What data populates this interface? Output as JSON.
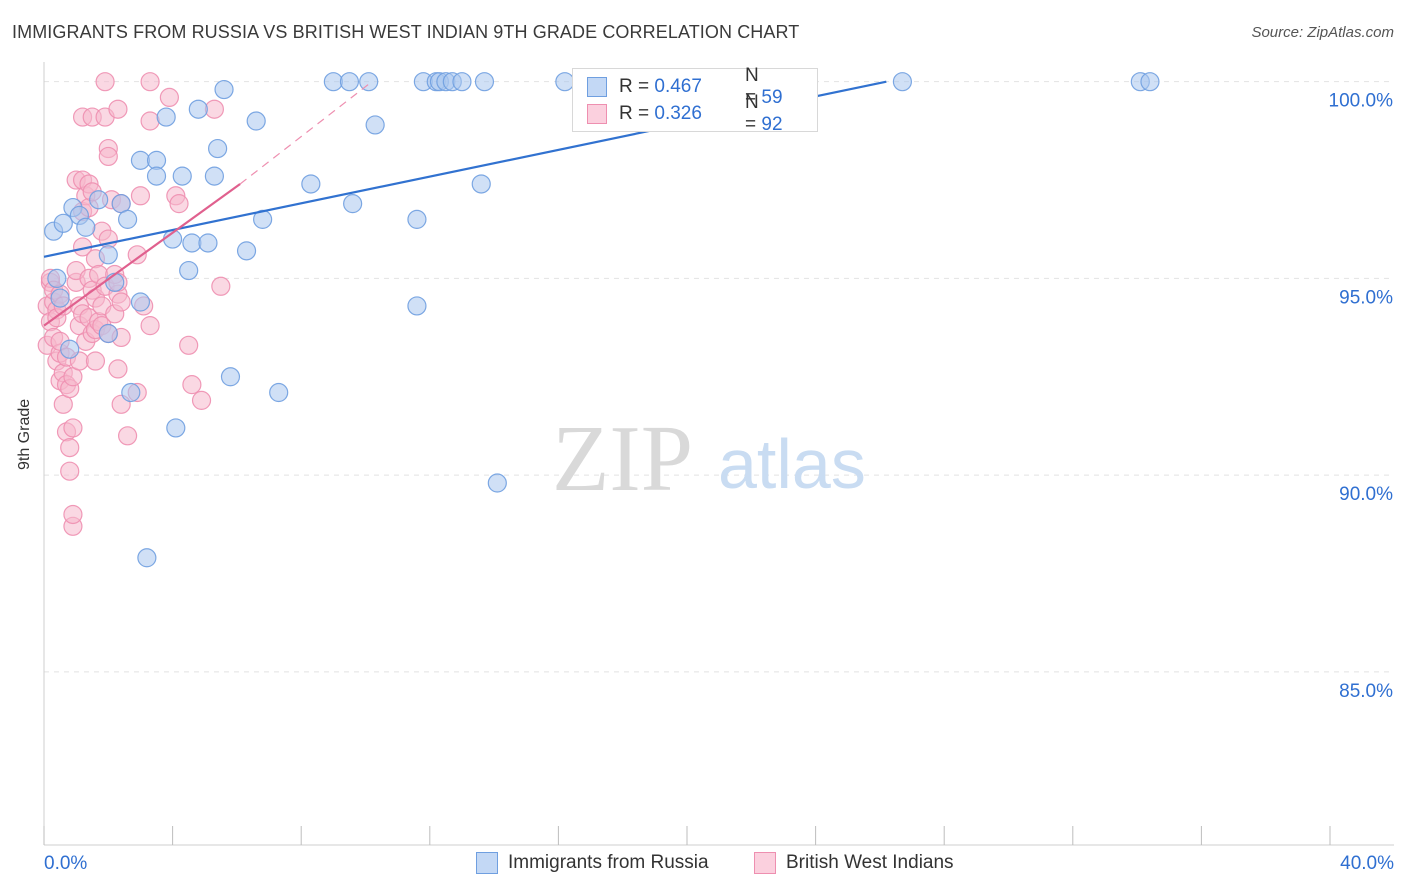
{
  "header": {
    "title": "IMMIGRANTS FROM RUSSIA VS BRITISH WEST INDIAN 9TH GRADE CORRELATION CHART",
    "source": "Source: ZipAtlas.com"
  },
  "watermark": {
    "zip": "ZIP",
    "atlas": "atlas"
  },
  "legend_top": {
    "rows": [
      {
        "r_label": "R =",
        "r_value": "0.467",
        "n_label": "N =",
        "n_value": "59"
      },
      {
        "r_label": "R =",
        "r_value": "0.326",
        "n_label": "N =",
        "n_value": "92"
      }
    ]
  },
  "colors": {
    "blue_fill": "#a9c6ee",
    "blue_stroke": "#6f9fe0",
    "blue_line": "#3172d0",
    "pink_fill": "#f6b8cc",
    "pink_stroke": "#ee8fb0",
    "pink_line": "#e0608e",
    "grid": "#e2e2e2",
    "tick_label": "#2f6fd1"
  },
  "chart_data": {
    "type": "scatter",
    "title": "IMMIGRANTS FROM RUSSIA VS BRITISH WEST INDIAN 9TH GRADE CORRELATION CHART",
    "xlabel": "",
    "ylabel": "9th Grade",
    "xlim": [
      0,
      40
    ],
    "ylim": [
      80.6,
      100.5
    ],
    "x_tick_labels": [
      "0.0%",
      "40.0%"
    ],
    "y_ticks": [
      85,
      90,
      95,
      100
    ],
    "y_tick_labels": [
      "85.0%",
      "90.0%",
      "95.0%",
      "100.0%"
    ],
    "legend_position": "bottom-center",
    "series": [
      {
        "name": "Immigrants from Russia",
        "color": "#6f9fe0",
        "trend": {
          "x0": 0,
          "y0": 95.55,
          "x1": 26.2,
          "y1": 100.0,
          "dashed_to_x": 26.2
        },
        "points": [
          [
            0.3,
            96.2
          ],
          [
            0.4,
            95.0
          ],
          [
            0.5,
            94.5
          ],
          [
            0.6,
            96.4
          ],
          [
            0.8,
            93.2
          ],
          [
            0.9,
            96.8
          ],
          [
            1.1,
            96.6
          ],
          [
            1.3,
            96.3
          ],
          [
            1.7,
            97.0
          ],
          [
            2.0,
            93.6
          ],
          [
            2.0,
            95.6
          ],
          [
            2.2,
            94.9
          ],
          [
            2.4,
            96.9
          ],
          [
            2.6,
            96.5
          ],
          [
            2.7,
            92.1
          ],
          [
            3.0,
            94.4
          ],
          [
            3.0,
            98.0
          ],
          [
            3.2,
            87.9
          ],
          [
            3.5,
            98.0
          ],
          [
            3.5,
            97.6
          ],
          [
            3.8,
            99.1
          ],
          [
            4.0,
            96.0
          ],
          [
            4.1,
            91.2
          ],
          [
            4.3,
            97.6
          ],
          [
            4.5,
            95.2
          ],
          [
            4.6,
            95.9
          ],
          [
            4.8,
            99.3
          ],
          [
            5.1,
            95.9
          ],
          [
            5.3,
            97.6
          ],
          [
            5.4,
            98.3
          ],
          [
            5.6,
            99.8
          ],
          [
            5.8,
            92.5
          ],
          [
            6.3,
            95.7
          ],
          [
            6.6,
            99.0
          ],
          [
            6.8,
            96.5
          ],
          [
            7.3,
            92.1
          ],
          [
            8.3,
            97.4
          ],
          [
            9.0,
            100.0
          ],
          [
            9.5,
            100.0
          ],
          [
            9.6,
            96.9
          ],
          [
            10.1,
            100.0
          ],
          [
            10.3,
            98.9
          ],
          [
            11.6,
            96.5
          ],
          [
            11.6,
            94.3
          ],
          [
            11.8,
            100.0
          ],
          [
            12.2,
            100.0
          ],
          [
            12.3,
            100.0
          ],
          [
            12.5,
            100.0
          ],
          [
            12.7,
            100.0
          ],
          [
            13.0,
            100.0
          ],
          [
            13.6,
            97.4
          ],
          [
            13.7,
            100.0
          ],
          [
            14.1,
            89.8
          ],
          [
            16.2,
            100.0
          ],
          [
            17.2,
            100.0
          ],
          [
            18.0,
            100.0
          ],
          [
            26.7,
            100.0
          ],
          [
            34.1,
            100.0
          ],
          [
            34.4,
            100.0
          ]
        ]
      },
      {
        "name": "British West Indians",
        "color": "#ee8fb0",
        "trend": {
          "x0": 0,
          "y0": 93.8,
          "x1": 6.1,
          "y1": 97.4,
          "dashed_x1": 10.2,
          "dashed_y1": 100.0
        },
        "points": [
          [
            0.1,
            93.3
          ],
          [
            0.1,
            94.3
          ],
          [
            0.2,
            94.9
          ],
          [
            0.2,
            93.9
          ],
          [
            0.2,
            95.0
          ],
          [
            0.3,
            94.4
          ],
          [
            0.3,
            94.7
          ],
          [
            0.3,
            93.5
          ],
          [
            0.4,
            92.9
          ],
          [
            0.4,
            94.2
          ],
          [
            0.4,
            94.0
          ],
          [
            0.5,
            93.1
          ],
          [
            0.5,
            92.4
          ],
          [
            0.5,
            94.6
          ],
          [
            0.5,
            93.4
          ],
          [
            0.6,
            94.3
          ],
          [
            0.6,
            91.8
          ],
          [
            0.6,
            92.6
          ],
          [
            0.7,
            91.1
          ],
          [
            0.7,
            93.0
          ],
          [
            0.7,
            92.3
          ],
          [
            0.8,
            90.7
          ],
          [
            0.8,
            90.1
          ],
          [
            0.8,
            92.2
          ],
          [
            0.9,
            88.7
          ],
          [
            0.9,
            89.0
          ],
          [
            0.9,
            91.2
          ],
          [
            0.9,
            92.5
          ],
          [
            1.0,
            94.9
          ],
          [
            1.0,
            95.2
          ],
          [
            1.0,
            97.5
          ],
          [
            1.1,
            93.8
          ],
          [
            1.1,
            92.9
          ],
          [
            1.1,
            94.3
          ],
          [
            1.2,
            96.7
          ],
          [
            1.2,
            94.1
          ],
          [
            1.2,
            95.8
          ],
          [
            1.2,
            97.5
          ],
          [
            1.2,
            99.1
          ],
          [
            1.3,
            93.4
          ],
          [
            1.3,
            97.1
          ],
          [
            1.4,
            94.0
          ],
          [
            1.4,
            95.0
          ],
          [
            1.4,
            96.8
          ],
          [
            1.4,
            97.4
          ],
          [
            1.5,
            99.1
          ],
          [
            1.5,
            94.7
          ],
          [
            1.5,
            93.6
          ],
          [
            1.5,
            97.2
          ],
          [
            1.6,
            92.9
          ],
          [
            1.6,
            95.5
          ],
          [
            1.6,
            93.7
          ],
          [
            1.6,
            94.5
          ],
          [
            1.7,
            93.9
          ],
          [
            1.7,
            95.1
          ],
          [
            1.8,
            94.3
          ],
          [
            1.8,
            96.2
          ],
          [
            1.8,
            93.8
          ],
          [
            1.9,
            99.1
          ],
          [
            1.9,
            100.0
          ],
          [
            1.9,
            94.8
          ],
          [
            2.0,
            98.3
          ],
          [
            2.0,
            98.1
          ],
          [
            2.0,
            93.6
          ],
          [
            2.0,
            96.0
          ],
          [
            2.1,
            97.0
          ],
          [
            2.2,
            95.1
          ],
          [
            2.2,
            94.1
          ],
          [
            2.3,
            94.6
          ],
          [
            2.3,
            99.3
          ],
          [
            2.3,
            94.9
          ],
          [
            2.3,
            92.7
          ],
          [
            2.4,
            96.9
          ],
          [
            2.4,
            94.4
          ],
          [
            2.4,
            93.5
          ],
          [
            2.4,
            91.8
          ],
          [
            2.6,
            91.0
          ],
          [
            2.9,
            92.1
          ],
          [
            2.9,
            95.6
          ],
          [
            3.0,
            97.1
          ],
          [
            3.1,
            94.3
          ],
          [
            3.3,
            93.8
          ],
          [
            3.3,
            99.0
          ],
          [
            3.3,
            100.0
          ],
          [
            3.9,
            99.6
          ],
          [
            4.1,
            97.1
          ],
          [
            4.2,
            96.9
          ],
          [
            4.5,
            93.3
          ],
          [
            4.6,
            92.3
          ],
          [
            4.9,
            91.9
          ],
          [
            5.3,
            99.3
          ],
          [
            5.5,
            94.8
          ]
        ]
      }
    ]
  }
}
